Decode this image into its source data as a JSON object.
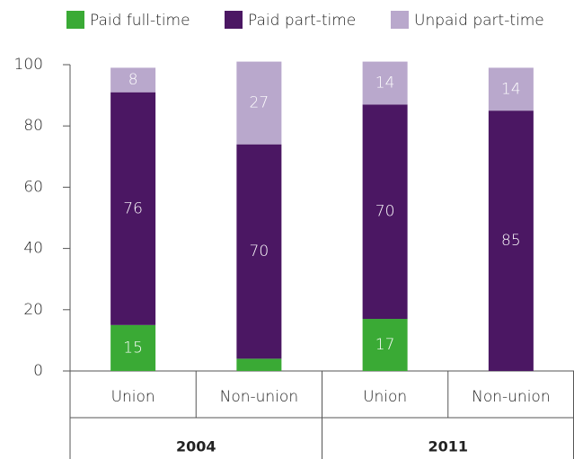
{
  "chart_data": {
    "type": "stacked_bar",
    "groups": [
      {
        "name": "2004",
        "categories": [
          "Union",
          "Non-union"
        ]
      },
      {
        "name": "2011",
        "categories": [
          "Union",
          "Non-union"
        ]
      }
    ],
    "series": [
      {
        "name": "Paid full-time",
        "color": "#3aaa35",
        "values": [
          15,
          4,
          17,
          0
        ],
        "value_labels": [
          15,
          null,
          17,
          null
        ]
      },
      {
        "name": "Paid part-time",
        "color": "#4b1763",
        "values": [
          76,
          70,
          70,
          85
        ],
        "value_labels": [
          76,
          70,
          70,
          85
        ]
      },
      {
        "name": "Unpaid part-time",
        "color": "#b9a8cc",
        "values": [
          8,
          27,
          14,
          14
        ],
        "value_labels": [
          8,
          27,
          14,
          14
        ]
      }
    ],
    "ylim": [
      0,
      100
    ],
    "yticks": [
      0,
      20,
      40,
      60,
      80,
      100
    ],
    "legend": "top"
  }
}
